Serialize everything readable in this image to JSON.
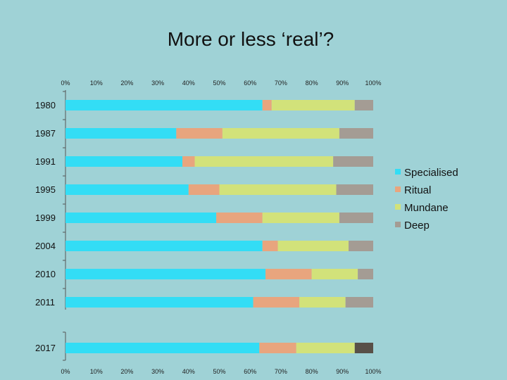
{
  "title": "More or less ‘real’?",
  "chart_data": {
    "type": "bar",
    "orientation": "horizontal",
    "stacked": "percent",
    "categories": [
      "1980",
      "1987",
      "1991",
      "1995",
      "1999",
      "2004",
      "2010",
      "2011",
      "2017"
    ],
    "series": [
      {
        "name": "Specialised",
        "color": "#33ddf5",
        "values": [
          64,
          36,
          38,
          40,
          49,
          64,
          65,
          61,
          63
        ]
      },
      {
        "name": "Ritual",
        "color": "#e8a57e",
        "values": [
          3,
          15,
          4,
          10,
          15,
          5,
          15,
          15,
          12
        ]
      },
      {
        "name": "Mundane",
        "color": "#d2e27a",
        "values": [
          27,
          38,
          45,
          38,
          25,
          23,
          15,
          15,
          19
        ]
      },
      {
        "name": "Deep",
        "color": "#a49c94",
        "values": [
          6,
          11,
          13,
          12,
          11,
          8,
          5,
          9,
          6
        ]
      }
    ],
    "last_deep_color": "#585048",
    "xticks": [
      "0%",
      "10%",
      "20%",
      "30%",
      "40%",
      "50%",
      "60%",
      "70%",
      "80%",
      "90%",
      "100%"
    ],
    "xlim": [
      0,
      100
    ],
    "legend_position": "right",
    "grid": false
  }
}
